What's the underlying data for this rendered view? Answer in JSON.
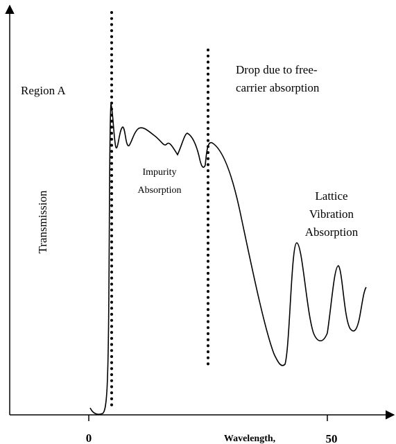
{
  "axes": {
    "y_label": "Transmission",
    "x_label": "Wavelength,",
    "x_ticks": [
      "0",
      "50"
    ]
  },
  "annotations": {
    "region_a": "Region A",
    "free_carrier": [
      "Drop due to free-",
      "carrier absorption"
    ],
    "impurity": [
      "Impurity",
      "Absorption"
    ],
    "lattice": [
      "Lattice",
      "Vibration",
      "Absorption"
    ]
  }
}
